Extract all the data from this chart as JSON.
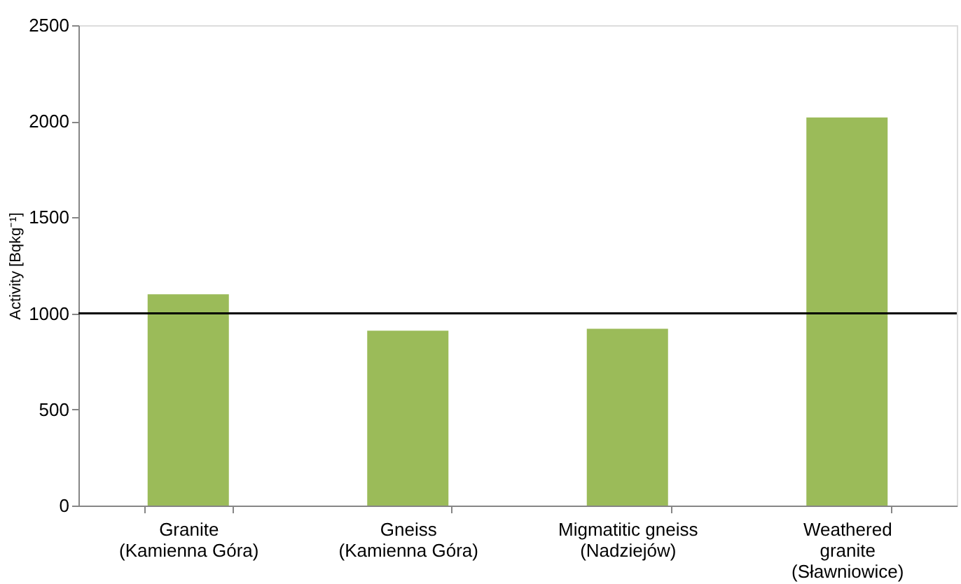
{
  "chart_data": {
    "type": "bar",
    "ylabel": "Activity  [Bqkg⁻¹]",
    "categories": [
      "Granite\n(Kamienna Góra)",
      "Gneiss\n(Kamienna Góra)",
      "Migmatitic gneiss\n(Nadziejów)",
      "Weathered\ngranite\n(Sławniowice)"
    ],
    "values": [
      1100,
      910,
      920,
      2020
    ],
    "color": "#9bbb59",
    "ylim": [
      0,
      2500
    ],
    "yticks": [
      0,
      500,
      1000,
      1500,
      2000,
      2500
    ],
    "grid": false,
    "ref_lines": [
      {
        "axis": "y",
        "value": 1000,
        "color": "#000000"
      }
    ]
  }
}
